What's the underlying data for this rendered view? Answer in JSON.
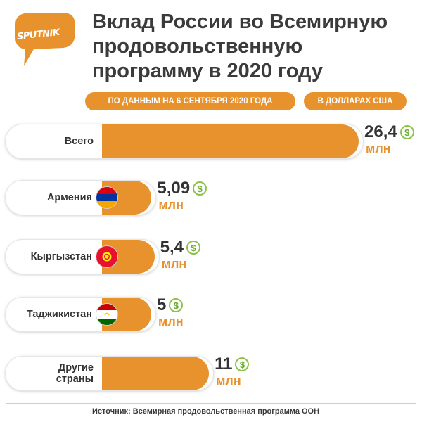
{
  "brand": {
    "logo_text": "SPUTNIK"
  },
  "title": "Вклад России во Всемирную продовольственную программу в 2020 году",
  "badges": {
    "date": "ПО ДАННЫМ НА 6 СЕНТЯБРЯ 2020 ГОДА",
    "currency": "В ДОЛЛАРАХ США"
  },
  "colors": {
    "bar": "#e8922e",
    "title": "#3b3b3b",
    "dollar_icon": "#8bc34a"
  },
  "chart_data": {
    "type": "bar",
    "orientation": "horizontal",
    "categories": [
      "Всего",
      "Армения",
      "Кыргызстан",
      "Таджикистан",
      "Другие\nстраны"
    ],
    "values": [
      26.4,
      5.09,
      5.4,
      5,
      11
    ],
    "value_labels": [
      "26,4",
      "5,09",
      "5,4",
      "5",
      "11"
    ],
    "unit": "млн",
    "flags": [
      "",
      "armenia-flag",
      "kyrgyzstan-flag",
      "tajikistan-flag",
      ""
    ],
    "title": "Вклад России во Всемирную продовольственную программу в 2020 году",
    "xlim": [
      0,
      26.4
    ]
  },
  "source": "Источник: Всемирная продовольственная программа ООН"
}
